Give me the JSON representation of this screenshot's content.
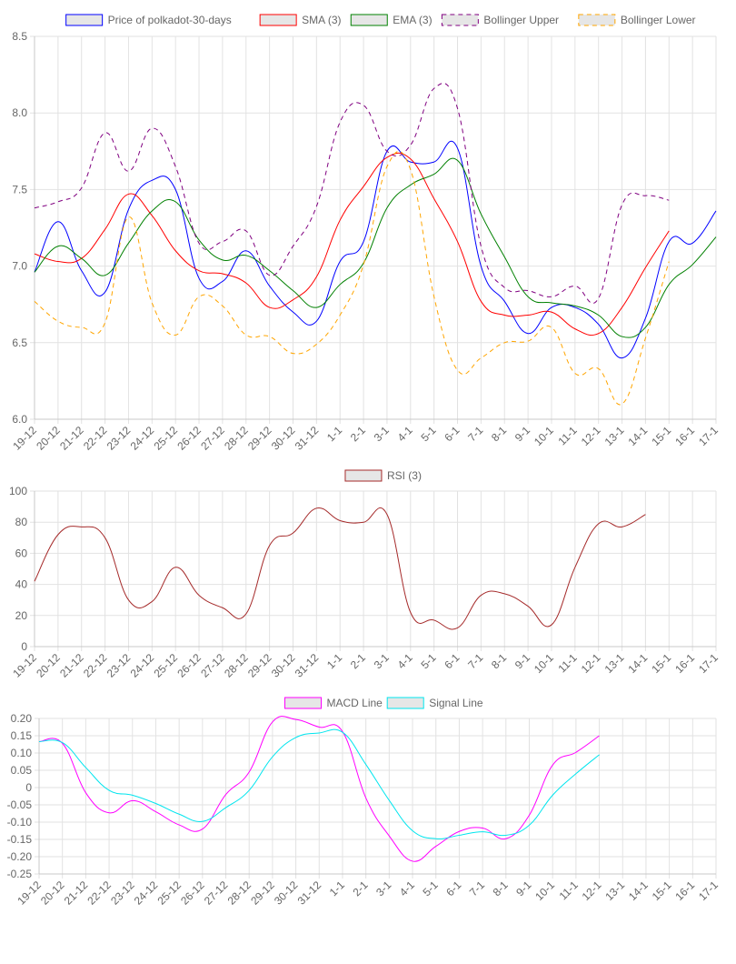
{
  "chart_data": [
    {
      "type": "line",
      "categories": [
        "19-12",
        "20-12",
        "21-12",
        "22-12",
        "23-12",
        "24-12",
        "25-12",
        "26-12",
        "27-12",
        "28-12",
        "29-12",
        "30-12",
        "31-12",
        "1-1",
        "2-1",
        "3-1",
        "4-1",
        "5-1",
        "6-1",
        "7-1",
        "8-1",
        "9-1",
        "10-1",
        "11-1",
        "12-1",
        "13-1",
        "14-1",
        "15-1",
        "16-1",
        "17-1"
      ],
      "ylim": [
        6.0,
        8.5
      ],
      "yticks": [
        6.0,
        6.5,
        7.0,
        7.5,
        8.0,
        8.5
      ],
      "ytick_labels": [
        "6.0",
        "6.5",
        "7.0",
        "7.5",
        "8.0",
        "8.5"
      ],
      "grid": true,
      "legend_position": "top-center",
      "series": [
        {
          "name": "Price of polkadot-30-days",
          "color": "#0000ff",
          "dashed": false,
          "values": [
            6.96,
            7.29,
            6.97,
            6.83,
            7.37,
            7.56,
            7.5,
            6.92,
            6.9,
            7.1,
            6.87,
            6.7,
            6.64,
            7.03,
            7.16,
            7.75,
            7.68,
            7.68,
            7.77,
            7.0,
            6.77,
            6.56,
            6.73,
            6.73,
            6.62,
            6.4,
            6.66,
            7.16,
            7.15,
            7.36
          ]
        },
        {
          "name": "SMA (3)",
          "color": "#ff0000",
          "dashed": false,
          "values": [
            7.08,
            7.03,
            7.05,
            7.24,
            7.47,
            7.33,
            7.1,
            6.97,
            6.95,
            6.89,
            6.73,
            6.78,
            6.93,
            7.3,
            7.52,
            7.71,
            7.7,
            7.44,
            7.16,
            6.77,
            6.68,
            6.68,
            6.7,
            6.59,
            6.56,
            6.73,
            6.99,
            7.23,
            null,
            null
          ]
        },
        {
          "name": "EMA (3)",
          "color": "#008000",
          "dashed": false,
          "values": [
            6.96,
            7.13,
            7.05,
            6.94,
            7.15,
            7.36,
            7.42,
            7.17,
            7.04,
            7.07,
            6.97,
            6.84,
            6.73,
            6.88,
            7.02,
            7.38,
            7.53,
            7.6,
            7.69,
            7.34,
            7.06,
            6.8,
            6.76,
            6.74,
            6.68,
            6.54,
            6.6,
            6.88,
            7.01,
            7.19
          ]
        },
        {
          "name": "Bollinger Upper",
          "color": "#800080",
          "dashed": true,
          "values": [
            7.38,
            7.42,
            7.51,
            7.87,
            7.62,
            7.9,
            7.65,
            7.15,
            7.16,
            7.23,
            6.94,
            7.13,
            7.39,
            7.94,
            8.05,
            7.75,
            7.79,
            8.16,
            8.03,
            7.13,
            6.86,
            6.84,
            6.8,
            6.87,
            6.79,
            7.4,
            7.46,
            7.43,
            null,
            null
          ]
        },
        {
          "name": "Bollinger Lower",
          "color": "#ffa500",
          "dashed": true,
          "values": [
            6.77,
            6.64,
            6.6,
            6.63,
            7.32,
            6.76,
            6.55,
            6.8,
            6.74,
            6.55,
            6.54,
            6.43,
            6.49,
            6.68,
            7.01,
            7.65,
            7.63,
            6.8,
            6.32,
            6.4,
            6.5,
            6.51,
            6.6,
            6.3,
            6.33,
            6.1,
            6.53,
            7.03,
            null,
            null
          ]
        }
      ]
    },
    {
      "type": "line",
      "categories": [
        "19-12",
        "20-12",
        "21-12",
        "22-12",
        "23-12",
        "24-12",
        "25-12",
        "26-12",
        "27-12",
        "28-12",
        "29-12",
        "30-12",
        "31-12",
        "1-1",
        "2-1",
        "3-1",
        "4-1",
        "5-1",
        "6-1",
        "7-1",
        "8-1",
        "9-1",
        "10-1",
        "11-1",
        "12-1",
        "13-1",
        "14-1",
        "15-1",
        "16-1",
        "17-1"
      ],
      "ylim": [
        0,
        100
      ],
      "yticks": [
        0,
        20,
        40,
        60,
        80,
        100
      ],
      "ytick_labels": [
        "0",
        "20",
        "40",
        "60",
        "80",
        "100"
      ],
      "grid": true,
      "legend_position": "top-center",
      "series": [
        {
          "name": "RSI (3)",
          "color": "#a52a2a",
          "dashed": false,
          "values": [
            42,
            72,
            77,
            70,
            30,
            29,
            51,
            33,
            25,
            21,
            65,
            73,
            89,
            81,
            80,
            85,
            22,
            17,
            12,
            33,
            34,
            26,
            14,
            51,
            79,
            77,
            85,
            null,
            null,
            null
          ]
        }
      ]
    },
    {
      "type": "line",
      "categories": [
        "19-12",
        "20-12",
        "21-12",
        "22-12",
        "23-12",
        "24-12",
        "25-12",
        "26-12",
        "27-12",
        "28-12",
        "29-12",
        "30-12",
        "31-12",
        "1-1",
        "2-1",
        "3-1",
        "4-1",
        "5-1",
        "6-1",
        "7-1",
        "8-1",
        "9-1",
        "10-1",
        "11-1",
        "12-1",
        "13-1",
        "14-1",
        "15-1",
        "16-1",
        "17-1"
      ],
      "ylim": [
        -0.25,
        0.2
      ],
      "yticks": [
        -0.25,
        -0.2,
        -0.15,
        -0.1,
        -0.05,
        0,
        0.05,
        0.1,
        0.15,
        0.2
      ],
      "ytick_labels": [
        "-0.25",
        "-0.20",
        "-0.15",
        "-0.10",
        "-0.05",
        "0",
        "0.05",
        "0.10",
        "0.15",
        "0.20"
      ],
      "grid": true,
      "legend_position": "top-center",
      "series": [
        {
          "name": "MACD Line",
          "color": "#ff00ff",
          "dashed": false,
          "values": [
            0.133,
            0.128,
            -0.015,
            -0.073,
            -0.038,
            -0.07,
            -0.108,
            -0.12,
            -0.02,
            0.045,
            0.19,
            0.197,
            0.175,
            0.162,
            -0.03,
            -0.14,
            -0.213,
            -0.17,
            -0.127,
            -0.117,
            -0.148,
            -0.08,
            0.065,
            0.102,
            0.15,
            null,
            null,
            null,
            null,
            null
          ]
        },
        {
          "name": "Signal Line",
          "color": "#00e5ee",
          "dashed": false,
          "values": [
            0.133,
            0.13,
            0.058,
            -0.008,
            -0.022,
            -0.046,
            -0.077,
            -0.098,
            -0.058,
            -0.008,
            0.089,
            0.145,
            0.158,
            0.16,
            0.067,
            -0.037,
            -0.125,
            -0.148,
            -0.138,
            -0.128,
            -0.138,
            -0.109,
            -0.022,
            0.04,
            0.095,
            null,
            null,
            null,
            null,
            null
          ]
        }
      ]
    }
  ]
}
